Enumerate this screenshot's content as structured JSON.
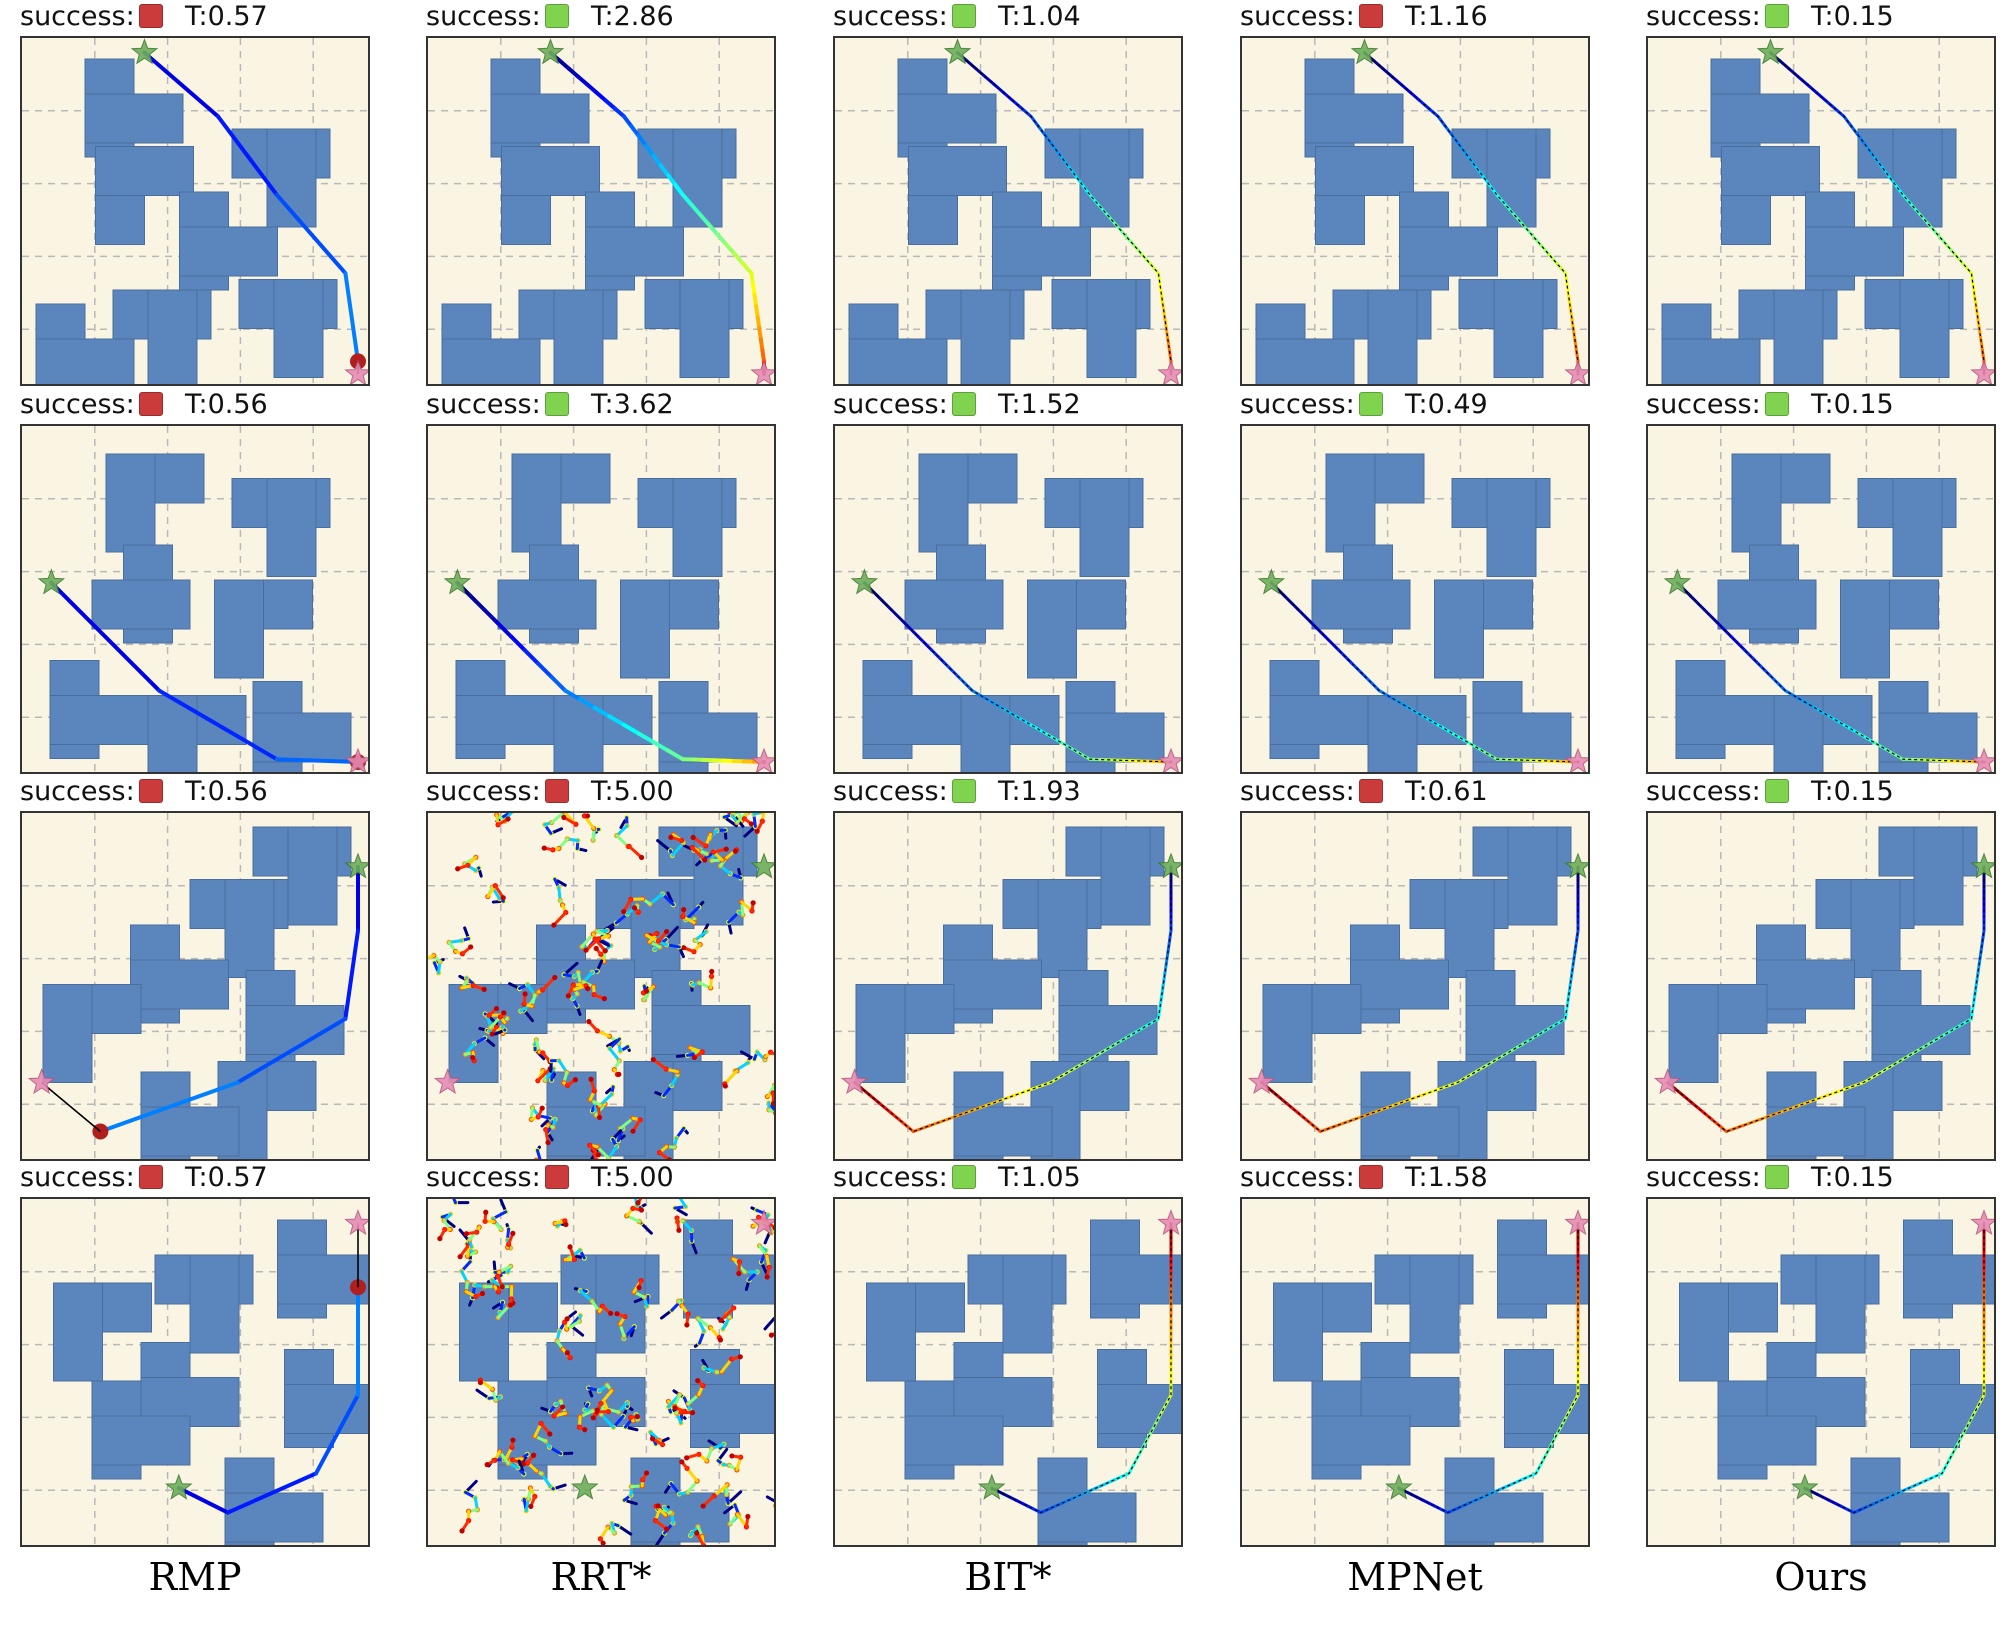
{
  "columns": [
    "RMP",
    "RRT*",
    "BIT*",
    "MPNet",
    "Ours"
  ],
  "success_label": "success:",
  "time_prefix": "T:",
  "colors": {
    "success": "#7fd34e",
    "failure": "#cc3b3b",
    "obstacle": "#5b86bd",
    "background": "#faf4e2",
    "start_marker": "#6cae5a",
    "goal_marker": "#e58bb4"
  },
  "rows": [
    {
      "panels": [
        {
          "success": false,
          "time": "0.57"
        },
        {
          "success": true,
          "time": "2.86"
        },
        {
          "success": true,
          "time": "1.04"
        },
        {
          "success": false,
          "time": "1.16"
        },
        {
          "success": true,
          "time": "0.15"
        }
      ]
    },
    {
      "panels": [
        {
          "success": false,
          "time": "0.56"
        },
        {
          "success": true,
          "time": "3.62"
        },
        {
          "success": true,
          "time": "1.52"
        },
        {
          "success": true,
          "time": "0.49"
        },
        {
          "success": true,
          "time": "0.15"
        }
      ]
    },
    {
      "panels": [
        {
          "success": false,
          "time": "0.56"
        },
        {
          "success": false,
          "time": "5.00"
        },
        {
          "success": true,
          "time": "1.93"
        },
        {
          "success": false,
          "time": "0.61"
        },
        {
          "success": true,
          "time": "0.15"
        }
      ]
    },
    {
      "panels": [
        {
          "success": false,
          "time": "0.57"
        },
        {
          "success": false,
          "time": "5.00"
        },
        {
          "success": true,
          "time": "1.05"
        },
        {
          "success": false,
          "time": "1.58"
        },
        {
          "success": true,
          "time": "0.15"
        }
      ]
    }
  ]
}
